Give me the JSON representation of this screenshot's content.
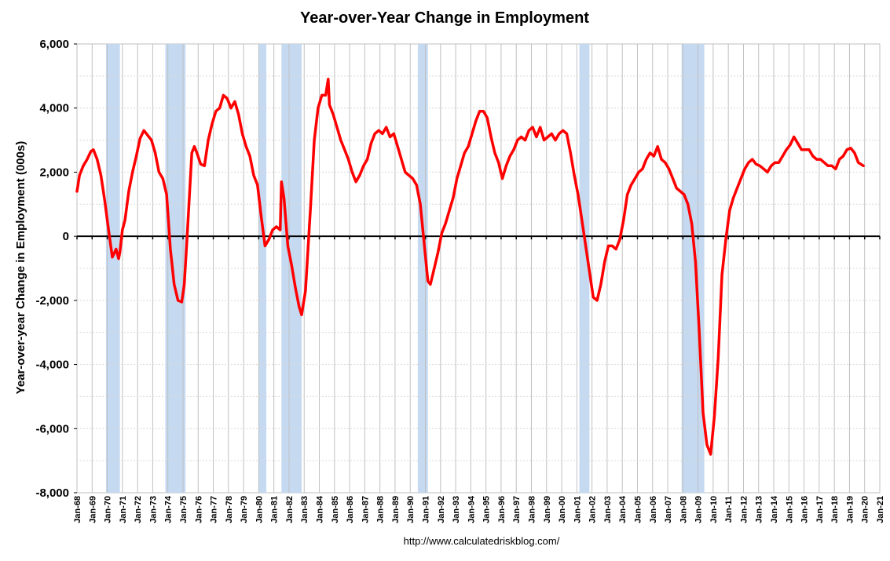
{
  "chart_data": {
    "type": "line",
    "title": "Year-over-Year Change in Employment",
    "xlabel": "",
    "ylabel": "Year-over-year Change in Employment (000s)",
    "source_text": "http://www.calculatedriskblog.com/",
    "ylim": [
      -8000,
      6000
    ],
    "xlim": [
      "1968-01",
      "2021-01"
    ],
    "y_ticks": [
      6000,
      4000,
      2000,
      0,
      -2000,
      -4000,
      -6000,
      -8000
    ],
    "y_tick_labels": [
      "6,000",
      "4,000",
      "2,000",
      "0",
      "-2,000",
      "-4,000",
      "-6,000",
      "-8,000"
    ],
    "x_tick_labels": [
      "Jan-68",
      "Jan-69",
      "Jan-70",
      "Jan-71",
      "Jan-72",
      "Jan-73",
      "Jan-74",
      "Jan-75",
      "Jan-76",
      "Jan-77",
      "Jan-78",
      "Jan-79",
      "Jan-80",
      "Jan-81",
      "Jan-82",
      "Jan-83",
      "Jan-84",
      "Jan-85",
      "Jan-86",
      "Jan-87",
      "Jan-88",
      "Jan-89",
      "Jan-90",
      "Jan-91",
      "Jan-92",
      "Jan-93",
      "Jan-94",
      "Jan-95",
      "Jan-96",
      "Jan-97",
      "Jan-98",
      "Jan-99",
      "Jan-00",
      "Jan-01",
      "Jan-02",
      "Jan-03",
      "Jan-04",
      "Jan-05",
      "Jan-06",
      "Jan-07",
      "Jan-08",
      "Jan-09",
      "Jan-10",
      "Jan-11",
      "Jan-12",
      "Jan-13",
      "Jan-14",
      "Jan-15",
      "Jan-16",
      "Jan-17",
      "Jan-18",
      "Jan-19",
      "Jan-20",
      "Jan-21"
    ],
    "grid": true,
    "recessions": [
      {
        "start": "1969-12",
        "end": "1970-11"
      },
      {
        "start": "1973-11",
        "end": "1975-03"
      },
      {
        "start": "1980-01",
        "end": "1980-07"
      },
      {
        "start": "1981-07",
        "end": "1982-11"
      },
      {
        "start": "1990-07",
        "end": "1991-03"
      },
      {
        "start": "2001-03",
        "end": "2001-11"
      },
      {
        "start": "2007-12",
        "end": "2009-06"
      }
    ],
    "colors": {
      "line": "#ff0000",
      "recession": "#c5d9f1",
      "grid_vertical": "#c0c0c0",
      "grid_horizontal": "#d9d9d9",
      "zero_line": "#000000"
    },
    "series": [
      {
        "x": [
          "1968-01",
          "1968-03",
          "1968-06",
          "1968-09",
          "1968-12",
          "1969-02",
          "1969-05",
          "1969-08",
          "1969-11",
          "1970-02",
          "1970-05",
          "1970-08",
          "1970-10",
          "1970-11",
          "1971-01",
          "1971-03",
          "1971-06",
          "1971-09",
          "1971-12",
          "1972-03",
          "1972-06",
          "1972-09",
          "1972-12",
          "1973-03",
          "1973-06",
          "1973-09",
          "1973-12",
          "1974-03",
          "1974-06",
          "1974-09",
          "1974-12",
          "1975-02",
          "1975-04",
          "1975-06",
          "1975-08",
          "1975-10",
          "1975-12",
          "1976-03",
          "1976-06",
          "1976-09",
          "1976-12",
          "1977-03",
          "1977-06",
          "1977-09",
          "1977-12",
          "1978-03",
          "1978-06",
          "1978-09",
          "1978-12",
          "1979-03",
          "1979-06",
          "1979-09",
          "1979-12",
          "1980-03",
          "1980-06",
          "1980-09",
          "1980-12",
          "1981-03",
          "1981-06",
          "1981-07",
          "1981-09",
          "1981-12",
          "1982-03",
          "1982-06",
          "1982-09",
          "1982-11",
          "1983-02",
          "1983-04",
          "1983-06",
          "1983-09",
          "1983-12",
          "1984-03",
          "1984-06",
          "1984-08",
          "1984-09",
          "1984-12",
          "1985-03",
          "1985-06",
          "1985-09",
          "1985-12",
          "1986-03",
          "1986-06",
          "1986-09",
          "1986-12",
          "1987-03",
          "1987-06",
          "1987-09",
          "1987-12",
          "1988-03",
          "1988-06",
          "1988-09",
          "1988-12",
          "1989-03",
          "1989-06",
          "1989-09",
          "1989-12",
          "1990-03",
          "1990-06",
          "1990-09",
          "1990-12",
          "1991-03",
          "1991-05",
          "1991-08",
          "1991-11",
          "1992-02",
          "1992-05",
          "1992-08",
          "1992-11",
          "1993-02",
          "1993-05",
          "1993-08",
          "1993-11",
          "1994-02",
          "1994-05",
          "1994-08",
          "1994-11",
          "1995-02",
          "1995-05",
          "1995-08",
          "1995-11",
          "1996-02",
          "1996-05",
          "1996-08",
          "1996-11",
          "1997-02",
          "1997-05",
          "1997-08",
          "1997-11",
          "1998-02",
          "1998-05",
          "1998-08",
          "1998-11",
          "1999-02",
          "1999-05",
          "1999-08",
          "1999-11",
          "2000-02",
          "2000-05",
          "2000-08",
          "2000-11",
          "2001-02",
          "2001-05",
          "2001-08",
          "2001-11",
          "2002-02",
          "2002-05",
          "2002-08",
          "2002-11",
          "2003-02",
          "2003-05",
          "2003-08",
          "2003-11",
          "2004-02",
          "2004-05",
          "2004-08",
          "2004-11",
          "2005-02",
          "2005-05",
          "2005-08",
          "2005-11",
          "2006-02",
          "2006-05",
          "2006-08",
          "2006-11",
          "2007-02",
          "2007-05",
          "2007-08",
          "2007-11",
          "2008-02",
          "2008-05",
          "2008-08",
          "2008-11",
          "2009-02",
          "2009-05",
          "2009-08",
          "2009-11",
          "2010-02",
          "2010-05",
          "2010-08",
          "2010-11",
          "2011-02",
          "2011-05",
          "2011-08",
          "2011-11",
          "2012-02",
          "2012-05",
          "2012-08",
          "2012-11",
          "2013-02",
          "2013-05",
          "2013-08",
          "2013-11",
          "2014-02",
          "2014-05",
          "2014-08",
          "2014-11",
          "2015-02",
          "2015-05",
          "2015-08",
          "2015-11",
          "2016-02",
          "2016-05",
          "2016-08",
          "2016-11",
          "2017-02",
          "2017-05",
          "2017-08",
          "2017-11",
          "2018-02",
          "2018-05",
          "2018-08",
          "2018-11",
          "2019-02",
          "2019-05",
          "2019-08",
          "2019-12"
        ],
        "values": [
          1400,
          1900,
          2200,
          2400,
          2650,
          2700,
          2400,
          1900,
          1100,
          200,
          -650,
          -400,
          -700,
          -500,
          200,
          500,
          1400,
          2000,
          2500,
          3050,
          3300,
          3150,
          3000,
          2600,
          2000,
          1800,
          1300,
          -400,
          -1500,
          -2000,
          -2050,
          -1500,
          -200,
          1200,
          2600,
          2800,
          2600,
          2250,
          2200,
          3000,
          3500,
          3900,
          4000,
          4400,
          4300,
          4000,
          4200,
          3800,
          3200,
          2800,
          2500,
          1900,
          1600,
          600,
          -300,
          -100,
          200,
          300,
          200,
          1700,
          1200,
          -300,
          -900,
          -1600,
          -2200,
          -2450,
          -1700,
          -400,
          900,
          3000,
          4000,
          4400,
          4400,
          4900,
          4100,
          3800,
          3400,
          3000,
          2700,
          2400,
          2000,
          1700,
          1900,
          2200,
          2400,
          2900,
          3200,
          3300,
          3200,
          3400,
          3100,
          3200,
          2800,
          2400,
          2000,
          1900,
          1800,
          1600,
          1000,
          -200,
          -1400,
          -1500,
          -1000,
          -500,
          100,
          400,
          800,
          1200,
          1800,
          2200,
          2600,
          2800,
          3200,
          3600,
          3900,
          3900,
          3700,
          3100,
          2600,
          2300,
          1800,
          2200,
          2500,
          2700,
          3000,
          3100,
          3000,
          3300,
          3400,
          3100,
          3400,
          3000,
          3100,
          3200,
          3000,
          3200,
          3300,
          3200,
          2600,
          1900,
          1300,
          500,
          -300,
          -1100,
          -1900,
          -2000,
          -1500,
          -800,
          -300,
          -300,
          -400,
          -100,
          500,
          1300,
          1600,
          1800,
          2000,
          2100,
          2400,
          2600,
          2500,
          2800,
          2400,
          2300,
          2100,
          1800,
          1500,
          1400,
          1300,
          1000,
          400,
          -800,
          -3000,
          -5500,
          -6500,
          -6800,
          -5600,
          -3800,
          -1200,
          -100,
          800,
          1200,
          1500,
          1800,
          2100,
          2300,
          2400,
          2250,
          2200,
          2100,
          2000,
          2200,
          2300,
          2300,
          2500,
          2700,
          2850,
          3100,
          2900,
          2700,
          2700,
          2700,
          2500,
          2400,
          2400,
          2300,
          2200,
          2200,
          2100,
          2400,
          2500,
          2700,
          2750,
          2600,
          2300,
          2200
        ]
      }
    ]
  }
}
